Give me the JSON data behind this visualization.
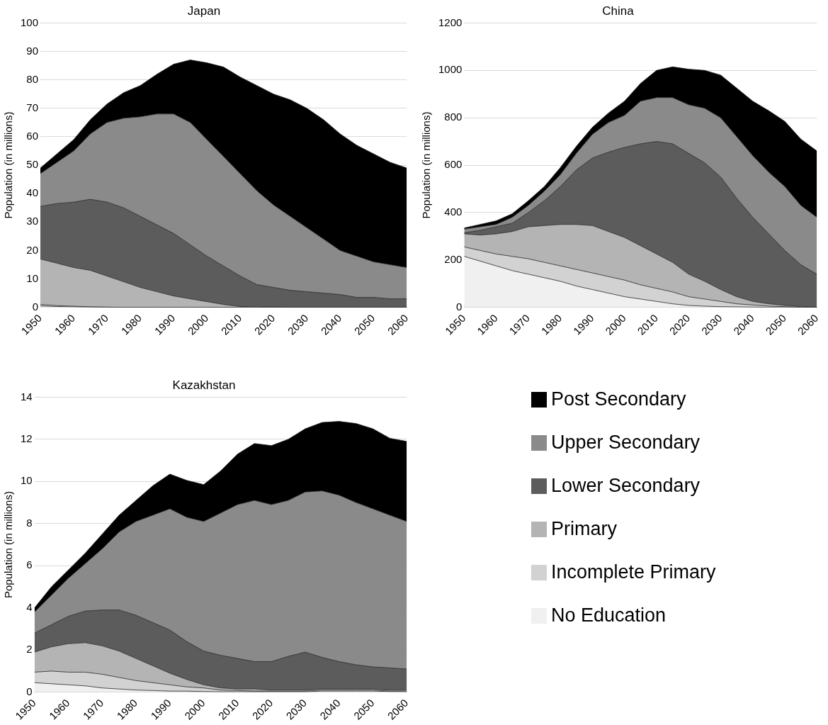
{
  "chart_data": [
    {
      "type": "area",
      "title": "Japan",
      "ylabel": "Population (in millions)",
      "stacked": true,
      "grid": "y",
      "legend": false,
      "x": [
        1950,
        1955,
        1960,
        1965,
        1970,
        1975,
        1980,
        1985,
        1990,
        1995,
        2000,
        2005,
        2010,
        2015,
        2020,
        2025,
        2030,
        2035,
        2040,
        2045,
        2050,
        2055,
        2060
      ],
      "xlim": [
        1950,
        2060
      ],
      "xticks": [
        1950,
        1960,
        1970,
        1980,
        1990,
        2000,
        2010,
        2020,
        2030,
        2040,
        2050,
        2060
      ],
      "ylim": [
        0,
        100
      ],
      "yticks": [
        0,
        10,
        20,
        30,
        40,
        50,
        60,
        70,
        80,
        90,
        100
      ],
      "series": [
        {
          "color": "#f0f0f0",
          "values": [
            0.5,
            0.3,
            0.2,
            0.1,
            0,
            0,
            0,
            0,
            0,
            0,
            0,
            0,
            0,
            0,
            0,
            0,
            0,
            0,
            0,
            0,
            0,
            0,
            0
          ]
        },
        {
          "color": "#d2d2d2",
          "values": [
            0.5,
            0.3,
            0.2,
            0.1,
            0.1,
            0,
            0,
            0,
            0,
            0,
            0,
            0,
            0,
            0,
            0,
            0,
            0,
            0,
            0,
            0,
            0,
            0,
            0
          ]
        },
        {
          "color": "#b4b4b4",
          "values": [
            16,
            14.9,
            13.6,
            12.8,
            10.9,
            9,
            7,
            5.5,
            4,
            3,
            2,
            1,
            0.3,
            0.2,
            0.1,
            0,
            0,
            0,
            0,
            0,
            0,
            0,
            0
          ]
        },
        {
          "color": "#5c5c5c",
          "values": [
            18.5,
            21,
            23,
            25,
            26,
            26,
            25,
            23.5,
            22,
            19,
            16,
            13.5,
            10.7,
            7.8,
            6.9,
            6,
            5.5,
            5,
            4.5,
            3.5,
            3.5,
            3,
            3
          ]
        },
        {
          "color": "#8a8a8a",
          "values": [
            11.5,
            14.5,
            18,
            23,
            28,
            31.5,
            35,
            39,
            42,
            43,
            41,
            38.5,
            36,
            33,
            29,
            26,
            22.5,
            19,
            15.5,
            14.5,
            12.5,
            12,
            11
          ]
        },
        {
          "color": "#000000",
          "values": [
            2,
            3,
            4,
            5,
            6.5,
            9,
            11,
            14,
            17.5,
            22,
            27,
            31.5,
            34,
            37,
            39,
            41,
            42,
            42,
            41,
            39,
            38,
            36,
            35
          ]
        }
      ]
    },
    {
      "type": "area",
      "title": "China",
      "ylabel": "Population (in millions)",
      "stacked": true,
      "grid": "y",
      "legend": false,
      "x": [
        1950,
        1955,
        1960,
        1965,
        1970,
        1975,
        1980,
        1985,
        1990,
        1995,
        2000,
        2005,
        2010,
        2015,
        2020,
        2025,
        2030,
        2035,
        2040,
        2045,
        2050,
        2055,
        2060
      ],
      "xlim": [
        1950,
        2060
      ],
      "xticks": [
        1950,
        1960,
        1970,
        1980,
        1990,
        2000,
        2010,
        2020,
        2030,
        2040,
        2050,
        2060
      ],
      "ylim": [
        0,
        1200
      ],
      "yticks": [
        0,
        200,
        400,
        600,
        800,
        1000,
        1200
      ],
      "series": [
        {
          "color": "#f0f0f0",
          "values": [
            215,
            195,
            175,
            155,
            140,
            125,
            110,
            90,
            75,
            60,
            45,
            35,
            25,
            15,
            8,
            5,
            3,
            2,
            1,
            0,
            0,
            0,
            0
          ]
        },
        {
          "color": "#d2d2d2",
          "values": [
            40,
            45,
            50,
            60,
            65,
            65,
            65,
            70,
            70,
            70,
            70,
            60,
            55,
            50,
            37,
            30,
            22,
            13,
            9,
            5,
            3,
            0,
            0
          ]
        },
        {
          "color": "#b4b4b4",
          "values": [
            55,
            65,
            85,
            105,
            135,
            155,
            175,
            190,
            200,
            190,
            180,
            165,
            145,
            125,
            95,
            75,
            50,
            30,
            15,
            10,
            5,
            3,
            0
          ]
        },
        {
          "color": "#5c5c5c",
          "values": [
            5,
            20,
            30,
            35,
            60,
            105,
            160,
            230,
            285,
            335,
            380,
            430,
            475,
            500,
            510,
            500,
            475,
            415,
            355,
            295,
            232,
            177,
            140
          ]
        },
        {
          "color": "#8a8a8a",
          "values": [
            15,
            15,
            10,
            25,
            30,
            40,
            50,
            70,
            100,
            125,
            135,
            180,
            185,
            195,
            205,
            230,
            250,
            260,
            260,
            260,
            270,
            250,
            240
          ]
        },
        {
          "color": "#000000",
          "values": [
            5,
            10,
            15,
            15,
            20,
            20,
            30,
            30,
            30,
            40,
            60,
            75,
            115,
            130,
            150,
            160,
            180,
            205,
            230,
            260,
            275,
            280,
            280
          ]
        }
      ]
    },
    {
      "type": "area",
      "title": "Kazakhstan",
      "ylabel": "Population (in millions)",
      "stacked": true,
      "grid": "y",
      "legend": "right",
      "x": [
        1950,
        1955,
        1960,
        1965,
        1970,
        1975,
        1980,
        1985,
        1990,
        1995,
        2000,
        2005,
        2010,
        2015,
        2020,
        2025,
        2030,
        2035,
        2040,
        2045,
        2050,
        2055,
        2060
      ],
      "xlim": [
        1950,
        2060
      ],
      "xticks": [
        1950,
        1960,
        1970,
        1980,
        1990,
        2000,
        2010,
        2020,
        2030,
        2040,
        2050,
        2060
      ],
      "ylim": [
        0,
        14
      ],
      "yticks": [
        0,
        2,
        4,
        6,
        8,
        10,
        12,
        14
      ],
      "series": [
        {
          "name": "No Education",
          "color": "#f0f0f0",
          "values": [
            0.45,
            0.4,
            0.35,
            0.3,
            0.2,
            0.15,
            0.1,
            0.08,
            0.05,
            0.05,
            0.03,
            0.02,
            0.02,
            0.02,
            0.02,
            0.02,
            0.02,
            0.05,
            0.05,
            0.05,
            0.05,
            0.03,
            0.03
          ]
        },
        {
          "name": "Incomplete Primary",
          "color": "#d2d2d2",
          "values": [
            0.5,
            0.6,
            0.6,
            0.65,
            0.65,
            0.55,
            0.45,
            0.37,
            0.3,
            0.2,
            0.17,
            0.08,
            0.06,
            0.03,
            0.03,
            0.03,
            0.03,
            0.05,
            0.05,
            0.05,
            0.05,
            0.02,
            0.02
          ]
        },
        {
          "name": "Primary",
          "color": "#b4b4b4",
          "values": [
            0.95,
            1.15,
            1.35,
            1.4,
            1.35,
            1.25,
            1.05,
            0.8,
            0.55,
            0.35,
            0.15,
            0.1,
            0.07,
            0.1,
            0.05,
            0.05,
            0.05,
            0.05,
            0.05,
            0.05,
            0.05,
            0.05,
            0.05
          ]
        },
        {
          "name": "Lower Secondary",
          "color": "#5c5c5c",
          "values": [
            0.9,
            1.05,
            1.3,
            1.5,
            1.7,
            1.95,
            2.05,
            2.05,
            2.05,
            1.8,
            1.6,
            1.55,
            1.45,
            1.3,
            1.35,
            1.6,
            1.8,
            1.5,
            1.3,
            1.15,
            1.05,
            1.05,
            1.0
          ]
        },
        {
          "name": "Upper Secondary",
          "color": "#8a8a8a",
          "values": [
            1.0,
            1.4,
            1.8,
            2.25,
            2.9,
            3.7,
            4.45,
            5.1,
            5.75,
            5.9,
            6.15,
            6.75,
            7.3,
            7.65,
            7.45,
            7.4,
            7.6,
            7.9,
            7.9,
            7.7,
            7.5,
            7.25,
            7.0
          ]
        },
        {
          "name": "Post Secondary",
          "color": "#000000",
          "values": [
            0.2,
            0.4,
            0.4,
            0.5,
            0.7,
            0.8,
            1.0,
            1.4,
            1.65,
            1.75,
            1.75,
            2.0,
            2.4,
            2.7,
            2.8,
            2.9,
            3.0,
            3.25,
            3.5,
            3.75,
            3.8,
            3.65,
            3.8
          ]
        }
      ]
    }
  ]
}
